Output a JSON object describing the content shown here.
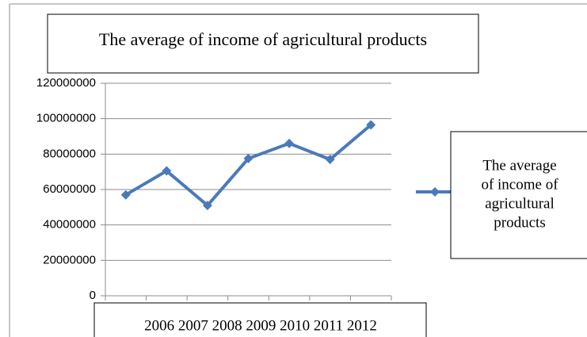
{
  "chart_data": {
    "type": "line",
    "title": "The average of income of agricultural products",
    "categories": [
      "2006",
      "2007",
      "2008",
      "2009",
      "2010",
      "2011",
      "2012"
    ],
    "series": [
      {
        "name": "The average of income of agricultural products",
        "values": [
          57000000,
          70500000,
          51000000,
          77500000,
          86000000,
          77000000,
          96500000
        ],
        "color": "#4a7ab8"
      }
    ],
    "y_ticks": [
      "0",
      "20000000",
      "40000000",
      "60000000",
      "80000000",
      "100000000",
      "120000000"
    ],
    "ylim": [
      0,
      120000000
    ],
    "grid": true,
    "legend_position": "right",
    "legend_lines": [
      "The average",
      "of income of",
      "agricultural",
      "products"
    ],
    "category_label": "2006 2007 2008 2009 2010 2011 2012",
    "marker": "diamond"
  }
}
